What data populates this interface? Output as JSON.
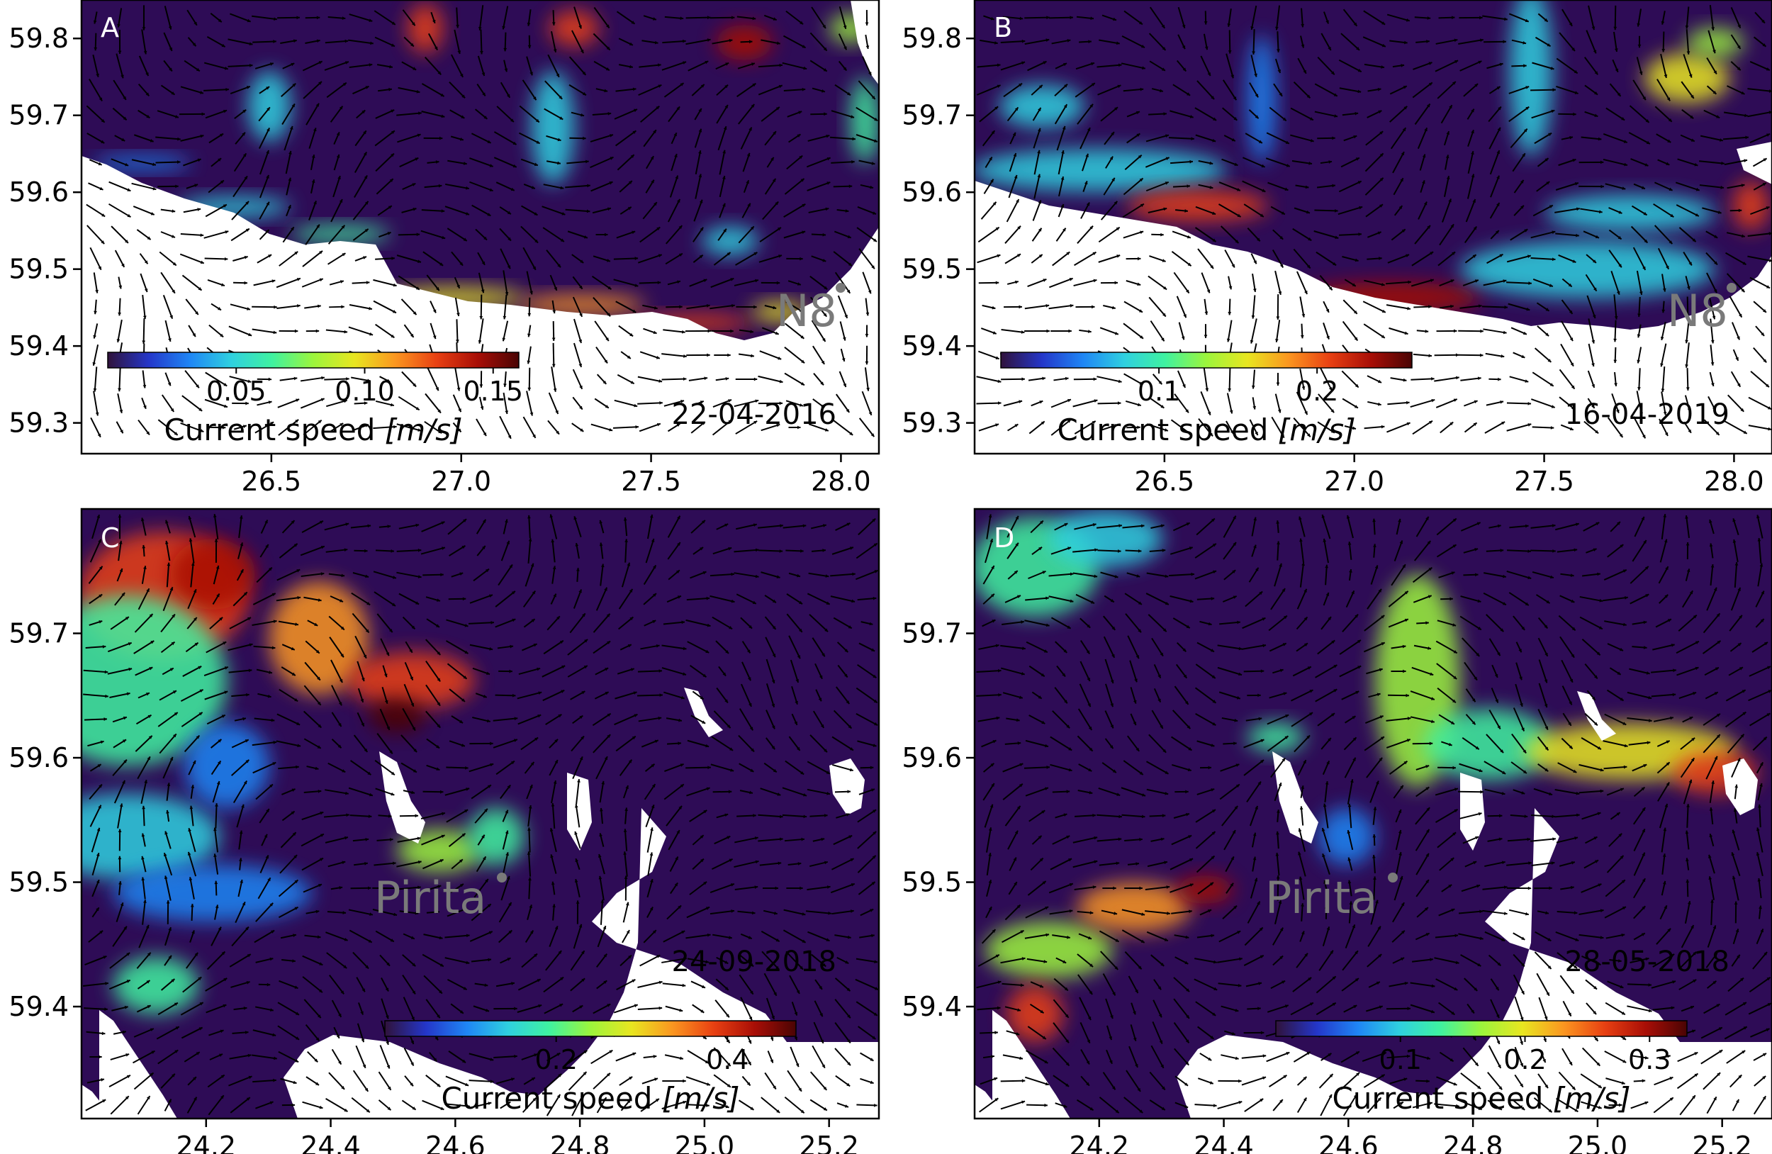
{
  "figure": {
    "panels": [
      {
        "letter": "A",
        "date": "22-04-2016",
        "station": "N8",
        "colorbar": {
          "title": "Current speed",
          "unit": "[m/s]",
          "max": 0.16,
          "ticks": [
            {
              "value": 0.05,
              "label": "0.05"
            },
            {
              "value": 0.1,
              "label": "0.10"
            },
            {
              "value": 0.15,
              "label": "0.15"
            }
          ]
        },
        "x_axis": {
          "min": 26.0,
          "max": 28.1,
          "ticks": [
            {
              "value": 26.5,
              "label": "26.5"
            },
            {
              "value": 27.0,
              "label": "27.0"
            },
            {
              "value": 27.5,
              "label": "27.5"
            },
            {
              "value": 28.0,
              "label": "28.0"
            }
          ]
        },
        "y_axis": {
          "min": 59.26,
          "max": 59.85,
          "ticks": [
            {
              "value": 59.8,
              "label": "59.8"
            },
            {
              "value": 59.7,
              "label": "59.7"
            },
            {
              "value": 59.6,
              "label": "59.6"
            },
            {
              "value": 59.5,
              "label": "59.5"
            },
            {
              "value": 59.4,
              "label": "59.4"
            },
            {
              "value": 59.3,
              "label": "59.3"
            }
          ]
        }
      },
      {
        "letter": "B",
        "date": "16-04-2019",
        "station": "N8",
        "colorbar": {
          "title": "Current speed",
          "unit": "[m/s]",
          "max": 0.26,
          "ticks": [
            {
              "value": 0.1,
              "label": "0.1"
            },
            {
              "value": 0.2,
              "label": "0.2"
            }
          ]
        },
        "x_axis": {
          "min": 26.0,
          "max": 28.1,
          "ticks": [
            {
              "value": 26.5,
              "label": "26.5"
            },
            {
              "value": 27.0,
              "label": "27.0"
            },
            {
              "value": 27.5,
              "label": "27.5"
            },
            {
              "value": 28.0,
              "label": "28.0"
            }
          ]
        },
        "y_axis": {
          "min": 59.26,
          "max": 59.85,
          "ticks": [
            {
              "value": 59.8,
              "label": "59.8"
            },
            {
              "value": 59.7,
              "label": "59.7"
            },
            {
              "value": 59.6,
              "label": "59.6"
            },
            {
              "value": 59.5,
              "label": "59.5"
            },
            {
              "value": 59.4,
              "label": "59.4"
            },
            {
              "value": 59.3,
              "label": "59.3"
            }
          ]
        }
      },
      {
        "letter": "C",
        "date": "24-09-2018",
        "station": "Pirita",
        "colorbar": {
          "title": "Current speed",
          "unit": "[m/s]",
          "max": 0.48,
          "ticks": [
            {
              "value": 0.2,
              "label": "0.2"
            },
            {
              "value": 0.4,
              "label": "0.4"
            }
          ]
        },
        "x_axis": {
          "min": 24.0,
          "max": 25.28,
          "ticks": [
            {
              "value": 24.2,
              "label": "24.2"
            },
            {
              "value": 24.4,
              "label": "24.4"
            },
            {
              "value": 24.6,
              "label": "24.6"
            },
            {
              "value": 24.8,
              "label": "24.8"
            },
            {
              "value": 25.0,
              "label": "25.0"
            },
            {
              "value": 25.2,
              "label": "25.2"
            }
          ]
        },
        "y_axis": {
          "min": 59.31,
          "max": 59.8,
          "ticks": [
            {
              "value": 59.7,
              "label": "59.7"
            },
            {
              "value": 59.6,
              "label": "59.6"
            },
            {
              "value": 59.5,
              "label": "59.5"
            },
            {
              "value": 59.4,
              "label": "59.4"
            }
          ]
        }
      },
      {
        "letter": "D",
        "date": "28-05-2018",
        "station": "Pirita",
        "colorbar": {
          "title": "Current speed",
          "unit": "[m/s]",
          "max": 0.33,
          "ticks": [
            {
              "value": 0.1,
              "label": "0.1"
            },
            {
              "value": 0.2,
              "label": "0.2"
            },
            {
              "value": 0.3,
              "label": "0.3"
            }
          ]
        },
        "x_axis": {
          "min": 24.0,
          "max": 25.28,
          "ticks": [
            {
              "value": 24.2,
              "label": "24.2"
            },
            {
              "value": 24.4,
              "label": "24.4"
            },
            {
              "value": 24.6,
              "label": "24.6"
            },
            {
              "value": 24.8,
              "label": "24.8"
            },
            {
              "value": 25.0,
              "label": "25.0"
            },
            {
              "value": 25.2,
              "label": "25.2"
            }
          ]
        },
        "y_axis": {
          "min": 59.31,
          "max": 59.8,
          "ticks": [
            {
              "value": 59.7,
              "label": "59.7"
            },
            {
              "value": 59.6,
              "label": "59.6"
            },
            {
              "value": 59.5,
              "label": "59.5"
            },
            {
              "value": 59.4,
              "label": "59.4"
            }
          ]
        }
      }
    ],
    "colors": {
      "water_still": "#2e0c56",
      "land": "#ffffff",
      "arrows": "#000000",
      "station_label": "#7a7a7a",
      "colormap": [
        "#30123b",
        "#2436c9",
        "#1f86f5",
        "#2fd0e0",
        "#3ff2a0",
        "#9cf53c",
        "#e8e620",
        "#fb9620",
        "#e84012",
        "#a80e06",
        "#4a0404"
      ]
    }
  }
}
